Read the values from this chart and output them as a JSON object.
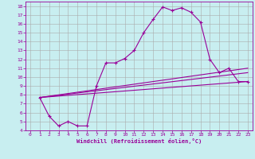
{
  "xlabel": "Windchill (Refroidissement éolien,°C)",
  "bg_color": "#c8eef0",
  "line_color": "#990099",
  "grid_color": "#aaaaaa",
  "xlim": [
    -0.5,
    23.5
  ],
  "ylim": [
    4,
    18.5
  ],
  "yticks": [
    4,
    5,
    6,
    7,
    8,
    9,
    10,
    11,
    12,
    13,
    14,
    15,
    16,
    17,
    18
  ],
  "xticks": [
    0,
    1,
    2,
    3,
    4,
    5,
    6,
    7,
    8,
    9,
    10,
    11,
    12,
    13,
    14,
    15,
    16,
    17,
    18,
    19,
    20,
    21,
    22,
    23
  ],
  "series1_x": [
    1,
    2,
    3,
    4,
    5,
    6,
    7,
    8,
    9,
    10,
    11,
    12,
    13,
    14,
    15,
    16,
    17,
    18,
    19,
    20,
    21,
    22,
    23
  ],
  "series1_y": [
    7.7,
    5.6,
    4.5,
    5.0,
    4.5,
    4.5,
    9.0,
    11.6,
    11.6,
    12.1,
    13.0,
    15.0,
    16.5,
    17.9,
    17.5,
    17.8,
    17.3,
    16.2,
    12.0,
    10.5,
    11.0,
    9.5,
    9.5
  ],
  "line2_x": [
    1,
    23
  ],
  "line2_y": [
    7.7,
    9.5
  ],
  "line3_x": [
    1,
    23
  ],
  "line3_y": [
    7.7,
    10.5
  ],
  "line4_x": [
    1,
    23
  ],
  "line4_y": [
    7.7,
    11.0
  ]
}
